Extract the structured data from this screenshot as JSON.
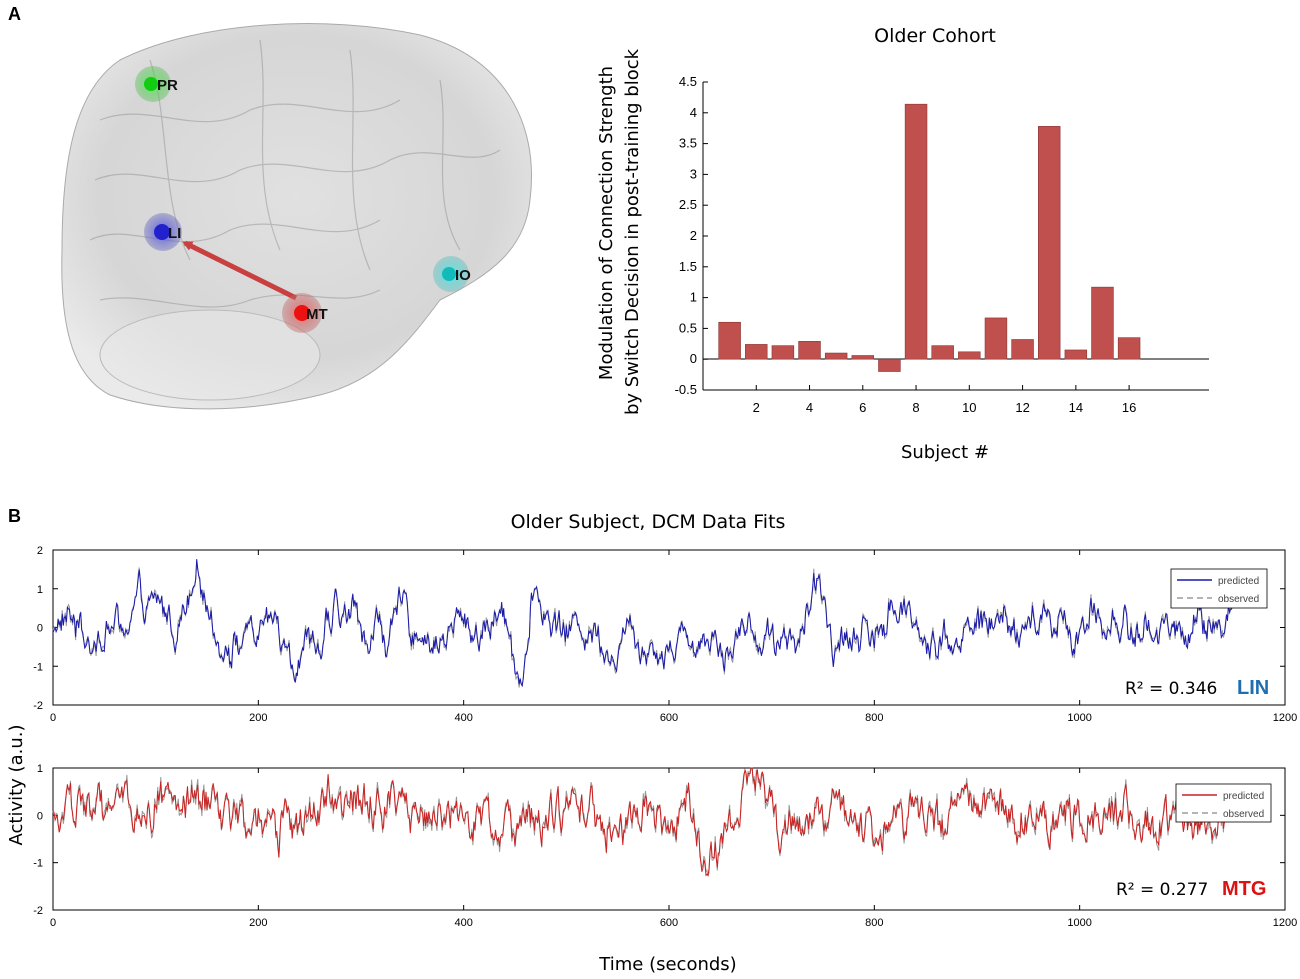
{
  "panels": {
    "a_label": "A",
    "b_label": "B"
  },
  "brain": {
    "nodes": [
      {
        "name": "PR",
        "color": "#33cc33"
      },
      {
        "name": "LI",
        "color": "#3333cc"
      },
      {
        "name": "IO",
        "color": "#22cccc"
      },
      {
        "name": "MT",
        "color": "#dd2222"
      }
    ],
    "arrow": {
      "from": "MT",
      "to": "LI",
      "color": "#c84040"
    }
  },
  "chart_data": [
    {
      "type": "bar",
      "title": "Older Cohort",
      "xlabel": "Subject #",
      "ylabel_line1": "Modulation of Connection Strength",
      "ylabel_line2": "by Switch Decision in post-training block",
      "categories": [
        1,
        2,
        3,
        4,
        5,
        6,
        7,
        8,
        9,
        10,
        11,
        12,
        13,
        14,
        15,
        16
      ],
      "values": [
        0.6,
        0.24,
        0.22,
        0.29,
        0.1,
        0.06,
        -0.2,
        4.14,
        0.22,
        0.12,
        0.67,
        0.32,
        3.78,
        0.15,
        1.17,
        0.35
      ],
      "ylim": [
        -0.5,
        4.5
      ],
      "xlim": [
        0,
        19
      ],
      "yticks": [
        "-0.5",
        "0",
        "0.5",
        "1",
        "1.5",
        "2",
        "2.5",
        "3",
        "3.5",
        "4",
        "4.5"
      ],
      "xticks": [
        "2",
        "4",
        "6",
        "8",
        "10",
        "12",
        "14",
        "16"
      ],
      "color": "#c0504d"
    },
    {
      "type": "line",
      "title": "Older Subject, DCM Data Fits",
      "region": "LIN",
      "region_color": "#1f6fb0",
      "r2": "R² = 0.346",
      "series": [
        {
          "name": "predicted",
          "color": "#1a1aaa"
        },
        {
          "name": "observed",
          "color": "#888888"
        }
      ],
      "xlim": [
        0,
        1200
      ],
      "ylim": [
        -2,
        2
      ],
      "xticks": [
        "0",
        "200",
        "400",
        "600",
        "800",
        "1000",
        "1200"
      ],
      "yticks": [
        "-2",
        "-1",
        "0",
        "1",
        "2"
      ]
    },
    {
      "type": "line",
      "region": "MTG",
      "region_color": "#dd1111",
      "r2": "R² = 0.277",
      "series": [
        {
          "name": "predicted",
          "color": "#cc2222"
        },
        {
          "name": "observed",
          "color": "#888888"
        }
      ],
      "xlim": [
        0,
        1200
      ],
      "ylim": [
        -2,
        1
      ],
      "xticks": [
        "0",
        "200",
        "400",
        "600",
        "800",
        "1000",
        "1200"
      ],
      "yticks": [
        "-2",
        "-1",
        "0",
        "1"
      ]
    }
  ],
  "shared_axes": {
    "ylabel": "Activity (a.u.)",
    "xlabel": "Time (seconds)"
  }
}
